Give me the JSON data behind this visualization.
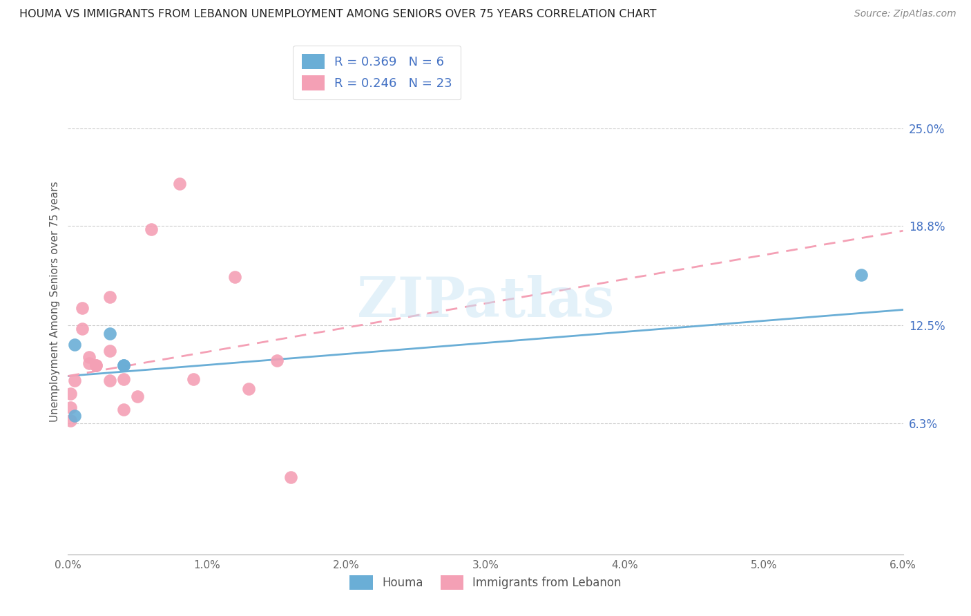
{
  "title": "HOUMA VS IMMIGRANTS FROM LEBANON UNEMPLOYMENT AMONG SENIORS OVER 75 YEARS CORRELATION CHART",
  "source": "Source: ZipAtlas.com",
  "ylabel": "Unemployment Among Seniors over 75 years",
  "xlim": [
    0.0,
    0.06
  ],
  "ylim": [
    -0.02,
    0.3
  ],
  "ytick_labels": [
    "6.3%",
    "12.5%",
    "18.8%",
    "25.0%"
  ],
  "ytick_values": [
    0.063,
    0.125,
    0.188,
    0.25
  ],
  "xtick_labels": [
    "0.0%",
    "1.0%",
    "2.0%",
    "3.0%",
    "4.0%",
    "5.0%",
    "6.0%"
  ],
  "xtick_values": [
    0.0,
    0.01,
    0.02,
    0.03,
    0.04,
    0.05,
    0.06
  ],
  "houma_color": "#6aaed6",
  "lebanon_color": "#f4a0b5",
  "houma_scatter": [
    [
      0.0005,
      0.068
    ],
    [
      0.0005,
      0.113
    ],
    [
      0.003,
      0.12
    ],
    [
      0.004,
      0.1
    ],
    [
      0.004,
      0.1
    ],
    [
      0.057,
      0.157
    ]
  ],
  "lebanon_scatter": [
    [
      0.0002,
      0.082
    ],
    [
      0.0002,
      0.073
    ],
    [
      0.0002,
      0.065
    ],
    [
      0.0005,
      0.09
    ],
    [
      0.001,
      0.136
    ],
    [
      0.001,
      0.123
    ],
    [
      0.0015,
      0.105
    ],
    [
      0.0015,
      0.101
    ],
    [
      0.002,
      0.1
    ],
    [
      0.002,
      0.1
    ],
    [
      0.003,
      0.143
    ],
    [
      0.003,
      0.109
    ],
    [
      0.003,
      0.09
    ],
    [
      0.004,
      0.072
    ],
    [
      0.004,
      0.091
    ],
    [
      0.005,
      0.08
    ],
    [
      0.006,
      0.186
    ],
    [
      0.008,
      0.215
    ],
    [
      0.009,
      0.091
    ],
    [
      0.012,
      0.156
    ],
    [
      0.013,
      0.085
    ],
    [
      0.015,
      0.103
    ],
    [
      0.016,
      0.029
    ]
  ],
  "houma_R": 0.369,
  "houma_N": 6,
  "lebanon_R": 0.246,
  "lebanon_N": 23,
  "houma_line_x": [
    0.0,
    0.06
  ],
  "houma_line_y": [
    0.093,
    0.135
  ],
  "lebanon_line_x": [
    0.0,
    0.06
  ],
  "lebanon_line_y": [
    0.093,
    0.185
  ],
  "watermark": "ZIPatlas",
  "legend_label_houma": "Houma",
  "legend_label_lebanon": "Immigrants from Lebanon"
}
